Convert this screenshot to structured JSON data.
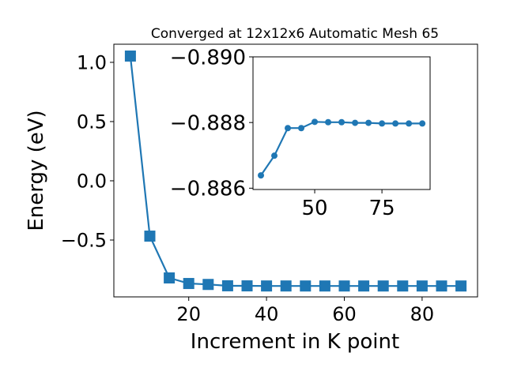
{
  "chart_data": [
    {
      "type": "line",
      "title": "Converged at 12x12x6 Automatic Mesh 65",
      "xlabel": "Increment in K point",
      "ylabel": "Energy (eV)",
      "xlim": [
        0.75,
        94.25
      ],
      "ylim": [
        -0.98,
        1.153
      ],
      "xticks": [
        20,
        40,
        60,
        80
      ],
      "xtick_labels": [
        "20",
        "40",
        "60",
        "80"
      ],
      "yticks": [
        1.0,
        0.5,
        0.0,
        -0.5
      ],
      "ytick_labels": [
        "1.0",
        "0.5",
        "0.0",
        "−0.5"
      ],
      "grid": false,
      "marker": "square",
      "color": "#1f77b4",
      "x": [
        5,
        10,
        15,
        20,
        25,
        30,
        35,
        40,
        45,
        50,
        55,
        60,
        65,
        70,
        75,
        80,
        85,
        90
      ],
      "y": [
        1.053,
        -0.467,
        -0.82,
        -0.867,
        -0.875,
        -0.8864,
        -0.887,
        -0.8878,
        -0.8878,
        -0.888,
        -0.888,
        -0.888,
        -0.888,
        -0.888,
        -0.888,
        -0.888,
        -0.888,
        -0.888
      ]
    },
    {
      "type": "line",
      "title": "",
      "xlim": [
        27.06,
        92.9
      ],
      "ylim": [
        -0.89,
        -0.88596
      ],
      "y_inverted": true,
      "xticks": [
        50,
        75
      ],
      "xtick_labels": [
        "50",
        "75"
      ],
      "yticks": [
        -0.89,
        -0.888,
        -0.886
      ],
      "ytick_labels": [
        "−0.890",
        "−0.888",
        "−0.886"
      ],
      "grid": false,
      "marker": "circle",
      "color": "#1f77b4",
      "x": [
        30,
        35,
        40,
        45,
        50,
        55,
        60,
        65,
        70,
        75,
        80,
        85,
        90
      ],
      "y": [
        -0.88639,
        -0.88699,
        -0.88783,
        -0.88783,
        -0.88802,
        -0.88801,
        -0.88801,
        -0.88799,
        -0.88799,
        -0.88797,
        -0.88797,
        -0.88797,
        -0.88797
      ]
    }
  ]
}
